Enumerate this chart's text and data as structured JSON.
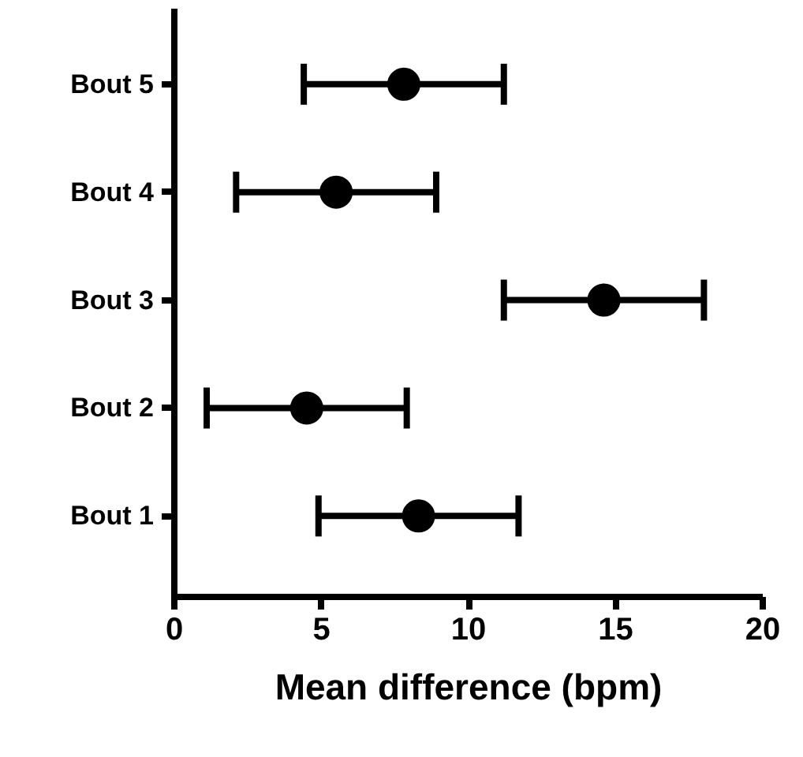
{
  "chart_data": {
    "type": "scatter",
    "orientation": "horizontal",
    "categories": [
      "Bout 5",
      "Bout 4",
      "Bout 3",
      "Bout 2",
      "Bout 1"
    ],
    "values": [
      7.8,
      5.5,
      14.6,
      4.5,
      8.3
    ],
    "errors": [
      3.4,
      3.4,
      3.4,
      3.4,
      3.4
    ],
    "color": "#000000",
    "marker": "circle",
    "xlabel": "Mean difference (bpm)",
    "xlim": [
      0,
      20
    ],
    "xticks": [
      0,
      5,
      10,
      15,
      20
    ],
    "grid": false
  }
}
